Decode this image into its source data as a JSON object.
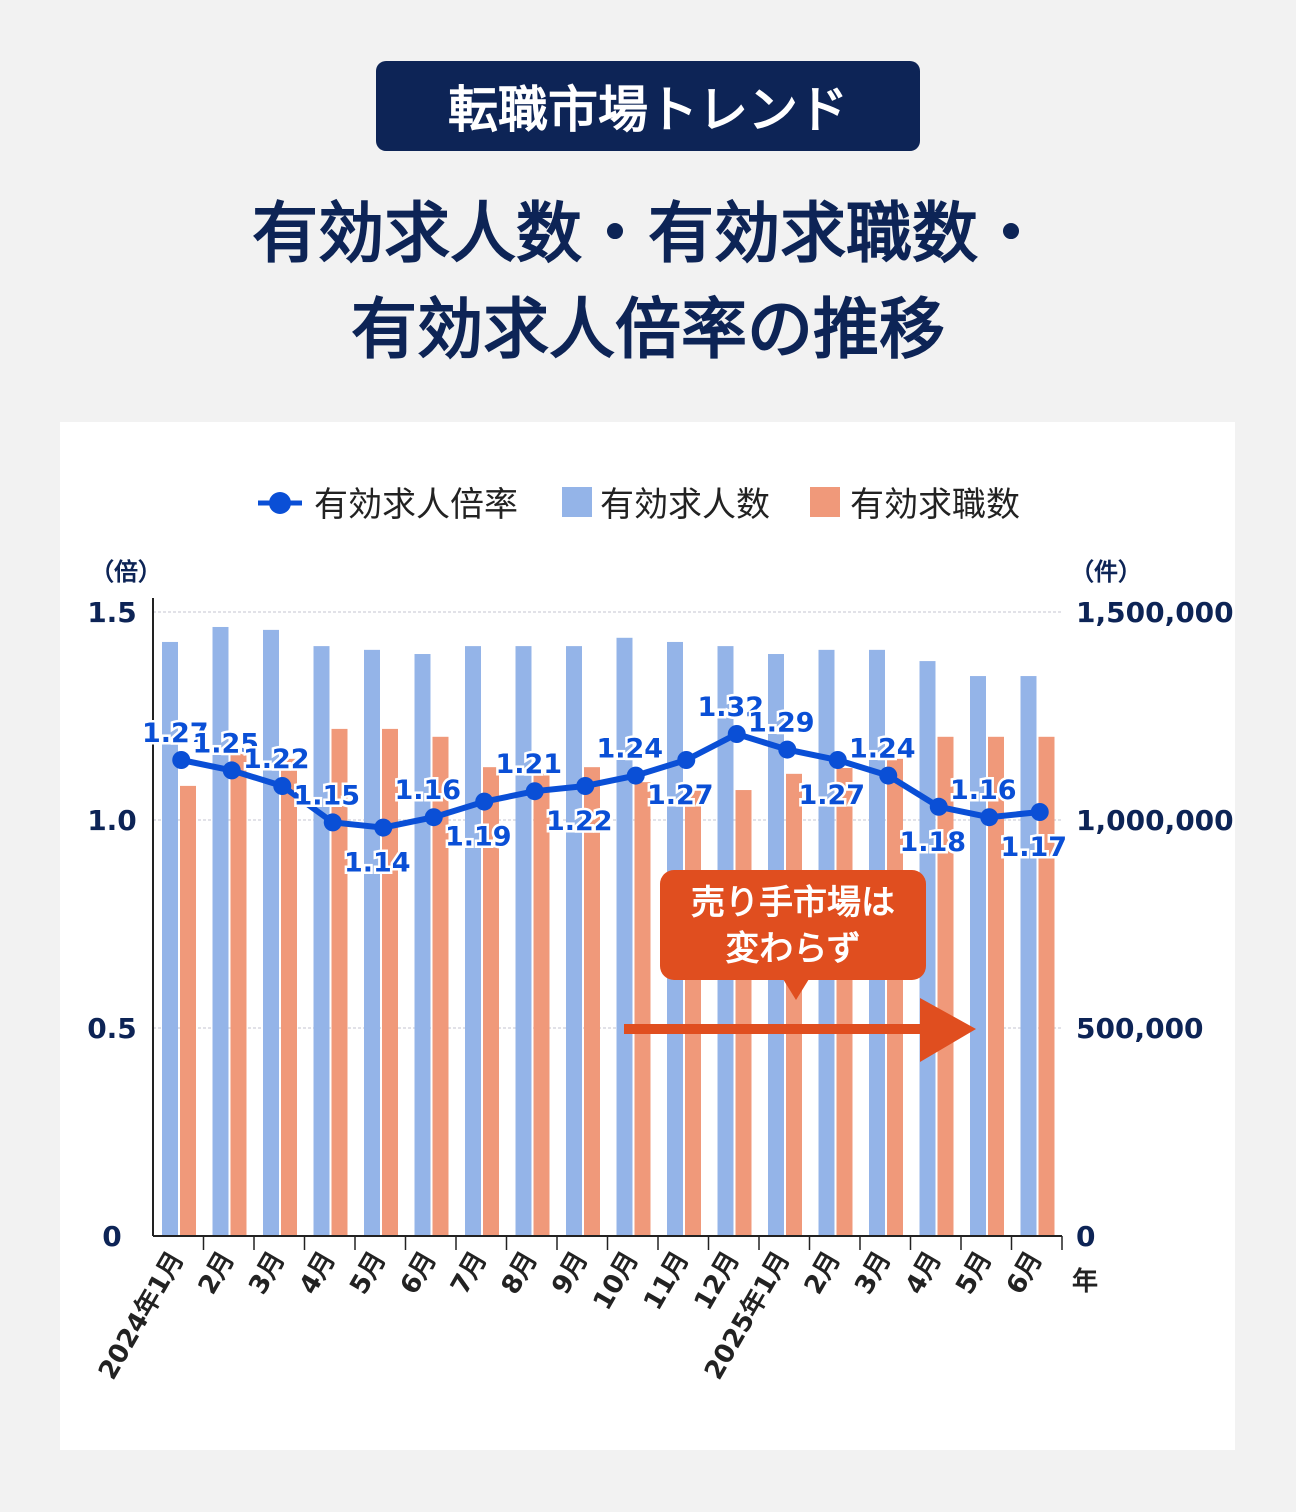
{
  "header": {
    "badge": "転職市場トレンド",
    "title_line1": "有効求人数・有効求職数・",
    "title_line2": "有効求人倍率の推移"
  },
  "chart_data": {
    "type": "bar+line",
    "categories": [
      "2024年1月",
      "2月",
      "3月",
      "4月",
      "5月",
      "6月",
      "7月",
      "8月",
      "9月",
      "10月",
      "11月",
      "12月",
      "2025年1月",
      "2月",
      "3月",
      "4月",
      "5月",
      "6月"
    ],
    "x_unit": "年",
    "series": [
      {
        "name": "有効求人倍率",
        "type": "line",
        "axis": "left",
        "color": "#0a4fd6",
        "values": [
          1.27,
          1.25,
          1.22,
          1.15,
          1.14,
          1.16,
          1.19,
          1.21,
          1.22,
          1.24,
          1.27,
          1.32,
          1.29,
          1.27,
          1.24,
          1.18,
          1.16,
          1.17
        ]
      },
      {
        "name": "有効求人数",
        "type": "bar",
        "axis": "right",
        "color": "#94b4e8",
        "values": [
          1428000,
          1464000,
          1457000,
          1418000,
          1409000,
          1399000,
          1418000,
          1418000,
          1418000,
          1438000,
          1428000,
          1418000,
          1399000,
          1409000,
          1409000,
          1382000,
          1346000,
          1346000
        ]
      },
      {
        "name": "有効求職数",
        "type": "bar",
        "axis": "right",
        "color": "#f0997a",
        "values": [
          1082000,
          1163000,
          1147000,
          1219000,
          1219000,
          1200000,
          1127000,
          1111000,
          1127000,
          1091000,
          1075000,
          1072000,
          1111000,
          1125000,
          1147000,
          1200000,
          1200000,
          1200000
        ]
      }
    ],
    "left_axis": {
      "unit": "（倍）",
      "range": [
        0,
        1.5
      ],
      "ticks": [
        "0",
        "0.5",
        "1.0",
        "1.5"
      ]
    },
    "right_axis": {
      "unit": "（件）",
      "range": [
        0,
        1500000
      ],
      "ticks": [
        "0",
        "500,000",
        "1,000,000",
        "1,500,000"
      ]
    },
    "legend": {
      "placement": "top",
      "items": [
        "有効求人倍率",
        "有効求人数",
        "有効求職数"
      ]
    },
    "grid": true,
    "annotation": {
      "line1": "売り手市場は",
      "line2": "変わらず",
      "color": "#e04e1f"
    }
  }
}
